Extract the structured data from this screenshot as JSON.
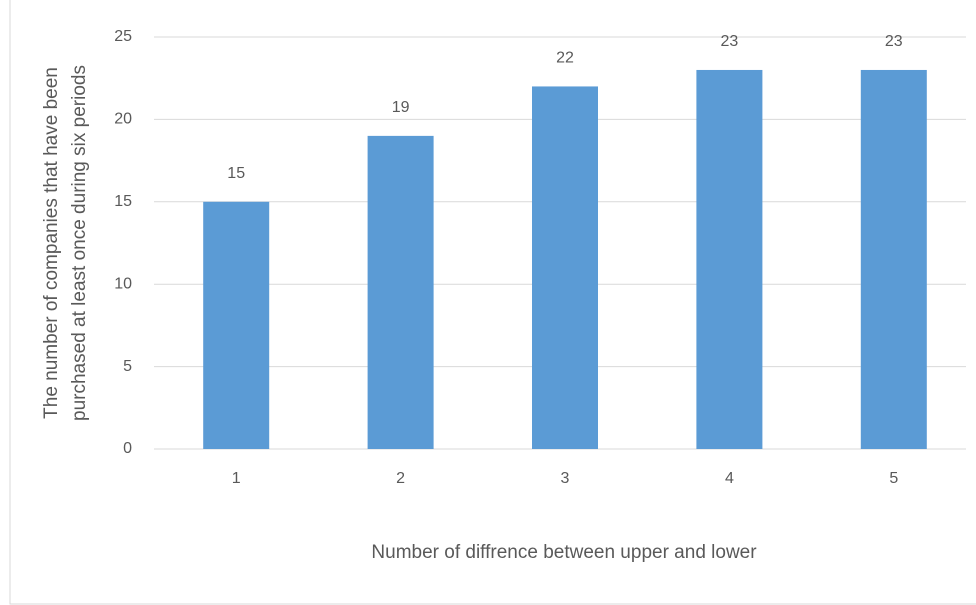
{
  "chart_data": {
    "type": "bar",
    "x_label": "Number of diffrence between upper and lower",
    "y_label": [
      "The number of companies that have been",
      "purchased at least once during six periods"
    ],
    "categories": [
      "1",
      "2",
      "3",
      "4",
      "5"
    ],
    "values": [
      15,
      19,
      22,
      23,
      23
    ],
    "color": "#5b9bd5",
    "ylim": [
      0,
      25
    ],
    "yticks": [
      0,
      5,
      10,
      15,
      20,
      25
    ],
    "grid": true
  }
}
